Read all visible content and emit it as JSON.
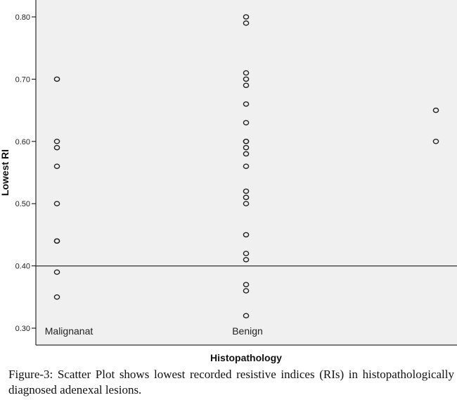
{
  "chart_data": {
    "type": "scatter",
    "title": "",
    "xlabel": "Histopathology",
    "ylabel": "Lowest RI",
    "categories": [
      "Malignanat",
      "Benign",
      ""
    ],
    "ylim": [
      0.3,
      0.8
    ],
    "yticks": [
      "0.30",
      "0.40",
      "0.50",
      "0.60",
      "0.70",
      "0.80"
    ],
    "reference_line": 0.4,
    "grid": false,
    "marker": "open-circle",
    "points": [
      {
        "category": "Malignanat",
        "values": [
          0.7,
          0.6,
          0.59,
          0.56,
          0.5,
          0.44,
          0.44,
          0.39,
          0.35
        ]
      },
      {
        "category": "Benign",
        "values": [
          0.8,
          0.79,
          0.71,
          0.7,
          0.69,
          0.66,
          0.63,
          0.6,
          0.6,
          0.59,
          0.58,
          0.56,
          0.52,
          0.51,
          0.5,
          0.45,
          0.42,
          0.41,
          0.37,
          0.36,
          0.32
        ]
      },
      {
        "category": "",
        "values": [
          0.65,
          0.6
        ]
      }
    ],
    "colors": {
      "plot_background": "#f0f0f0",
      "marker": "#222222",
      "axis": "#000000"
    }
  },
  "caption": "Figure-3: Scatter Plot shows lowest recorded resistive indices (RIs) in histopathologically diagnosed adenexal lesions."
}
